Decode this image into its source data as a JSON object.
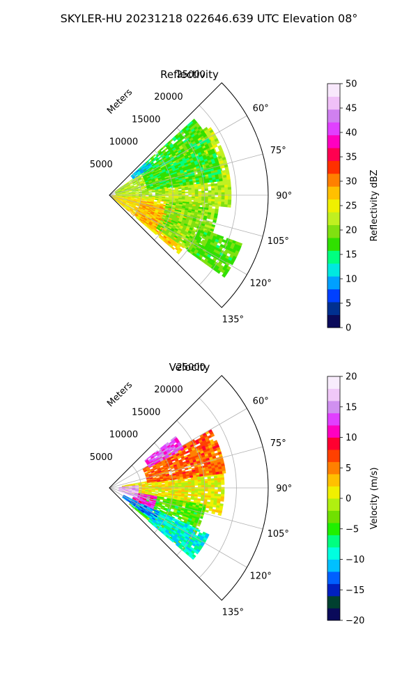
{
  "suptitle": "SKYLER-HU  20231218  022646.639 UTC Elevation 08°",
  "chart_data": [
    {
      "type": "polar-sector",
      "title": "Reflectivity",
      "radial_label": "Meters",
      "radial_ticks": [
        "5000",
        "10000",
        "15000",
        "20000",
        "25000"
      ],
      "radial_tick_values": [
        5000,
        10000,
        15000,
        20000,
        25000
      ],
      "rmax": 25000,
      "theta_range_deg": [
        45,
        135
      ],
      "theta_ticks": [
        "60°",
        "75°",
        "90°",
        "105°",
        "120°",
        "135°"
      ],
      "theta_tick_values": [
        60,
        75,
        90,
        105,
        120,
        135
      ],
      "grid": true,
      "colorbar": {
        "label": "Reflectivity dBZ",
        "range": [
          0,
          50
        ],
        "ticks": [
          "0",
          "5",
          "10",
          "15",
          "20",
          "25",
          "30",
          "35",
          "40",
          "45",
          "50"
        ],
        "tick_values": [
          0,
          5,
          10,
          15,
          20,
          25,
          30,
          35,
          40,
          45,
          50
        ],
        "colors": [
          "#0a0a5a",
          "#003090",
          "#0040ff",
          "#00a0ff",
          "#00e8e0",
          "#00ff80",
          "#30e000",
          "#80e010",
          "#c0f020",
          "#f0f000",
          "#ffc000",
          "#ff8000",
          "#ff3000",
          "#ff0050",
          "#ff00c0",
          "#e040ff",
          "#d080f0",
          "#f0c0f8",
          "#f8e8fc"
        ]
      },
      "echo_regions": [
        {
          "level": 26,
          "theta_from": 92,
          "theta_to": 130,
          "r_from": 300,
          "r_to": 14000
        },
        {
          "level": 28,
          "theta_from": 100,
          "theta_to": 128,
          "r_from": 5000,
          "r_to": 12500
        },
        {
          "level": 22,
          "theta_from": 55,
          "theta_to": 95,
          "r_from": 1000,
          "r_to": 19000
        },
        {
          "level": 20,
          "theta_from": 95,
          "theta_to": 125,
          "r_from": 9000,
          "r_to": 17000
        },
        {
          "level": 17,
          "theta_from": 48,
          "theta_to": 82,
          "r_from": 6000,
          "r_to": 17500
        },
        {
          "level": 10,
          "theta_from": 48,
          "theta_to": 56,
          "r_from": 4500,
          "r_to": 8000
        },
        {
          "level": 18,
          "theta_from": 110,
          "theta_to": 125,
          "r_from": 15000,
          "r_to": 22000
        }
      ]
    },
    {
      "type": "polar-sector",
      "title": "Velocity",
      "radial_label": "Meters",
      "radial_ticks": [
        "5000",
        "10000",
        "15000",
        "20000",
        "25000"
      ],
      "radial_tick_values": [
        5000,
        10000,
        15000,
        20000,
        25000
      ],
      "rmax": 25000,
      "theta_range_deg": [
        45,
        135
      ],
      "theta_ticks": [
        "60°",
        "75°",
        "90°",
        "105°",
        "120°",
        "135°"
      ],
      "theta_tick_values": [
        60,
        75,
        90,
        105,
        120,
        135
      ],
      "grid": true,
      "colorbar": {
        "label": "Velocity (m/s)",
        "range": [
          -20,
          20
        ],
        "ticks": [
          "−20",
          "−15",
          "−10",
          "−5",
          "0",
          "5",
          "10",
          "15",
          "20"
        ],
        "tick_values": [
          -20,
          -15,
          -10,
          -5,
          0,
          5,
          10,
          15,
          20
        ],
        "colors": [
          "#0a0a5a",
          "#004030",
          "#0020c0",
          "#0060ff",
          "#00c0ff",
          "#00ffe0",
          "#00ff80",
          "#20f000",
          "#70e000",
          "#b0f010",
          "#f0f000",
          "#ffc000",
          "#ff8000",
          "#ff4000",
          "#ff0030",
          "#ff00c0",
          "#e040ff",
          "#d090f0",
          "#f0c8f8",
          "#f8ecfc"
        ]
      },
      "echo_regions": [
        {
          "level": 1,
          "theta_from": 80,
          "theta_to": 103,
          "r_from": 2000,
          "r_to": 18000
        },
        {
          "level": -4,
          "theta_from": 100,
          "theta_to": 130,
          "r_from": 4000,
          "r_to": 15000
        },
        {
          "level": -9,
          "theta_from": 115,
          "theta_to": 130,
          "r_from": 8000,
          "r_to": 17000
        },
        {
          "level": 6,
          "theta_from": 60,
          "theta_to": 82,
          "r_from": 6000,
          "r_to": 18000
        },
        {
          "level": 13,
          "theta_from": 52,
          "theta_to": 62,
          "r_from": 7000,
          "r_to": 13000
        },
        {
          "level": 12,
          "theta_from": 100,
          "theta_to": 118,
          "r_from": 4000,
          "r_to": 7500
        },
        {
          "level": 16,
          "theta_from": 85,
          "theta_to": 110,
          "r_from": 1500,
          "r_to": 4500
        },
        {
          "level": -12,
          "theta_from": 116,
          "theta_to": 126,
          "r_from": 2500,
          "r_to": 8500
        }
      ]
    }
  ]
}
